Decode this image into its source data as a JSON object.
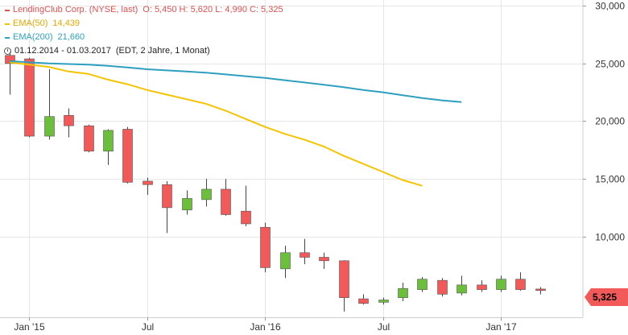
{
  "header": {
    "title_line": "LendingClub Corp. (NYSE, last)",
    "ohlc_line": "O: 5,450  H: 5,620  L: 4,990  C: 5,325",
    "ema50_label": "EMA(50)",
    "ema50_value": "14,439",
    "ema200_label": "EMA(200)",
    "ema200_value": "21,660",
    "range_label": "01.12.2014 - 01.03.2017",
    "range_note": "(EDT, 2 Jahre, 1 Monat)"
  },
  "colors": {
    "up": "#6cbf3a",
    "down": "#f25a5a",
    "ema50": "#f5c400",
    "ema200": "#2e9fbf",
    "grid": "#e6e6e6",
    "text_red": "#e05050"
  },
  "last_price_label": "5,325",
  "chart_data": {
    "type": "candlestick",
    "ylim": [
      3000,
      30500
    ],
    "y_ticks": [
      10000,
      15000,
      20000,
      25000,
      30000
    ],
    "y_tick_labels": [
      "10,000",
      "15,000",
      "20,000",
      "25,000",
      "30,000"
    ],
    "x_ticks": [
      {
        "label": "Jan '15",
        "index": 1
      },
      {
        "label": "Jul",
        "index": 7
      },
      {
        "label": "Jan '16",
        "index": 13
      },
      {
        "label": "Jul",
        "index": 19
      },
      {
        "label": "Jan '17",
        "index": 25
      }
    ],
    "candles": [
      {
        "o": 25700,
        "h": 26000,
        "l": 22300,
        "c": 25000
      },
      {
        "o": 25400,
        "h": 25500,
        "l": 18600,
        "c": 18700
      },
      {
        "o": 18700,
        "h": 24500,
        "l": 18400,
        "c": 20400
      },
      {
        "o": 20500,
        "h": 21100,
        "l": 18600,
        "c": 19600
      },
      {
        "o": 19600,
        "h": 19700,
        "l": 17300,
        "c": 17400
      },
      {
        "o": 17400,
        "h": 19300,
        "l": 16200,
        "c": 19200
      },
      {
        "o": 19300,
        "h": 19500,
        "l": 14600,
        "c": 14700
      },
      {
        "o": 14800,
        "h": 15100,
        "l": 13600,
        "c": 14500
      },
      {
        "o": 14500,
        "h": 14800,
        "l": 10300,
        "c": 12500
      },
      {
        "o": 12300,
        "h": 14000,
        "l": 11900,
        "c": 13300
      },
      {
        "o": 13200,
        "h": 15000,
        "l": 12600,
        "c": 14100
      },
      {
        "o": 14100,
        "h": 15000,
        "l": 11800,
        "c": 11900
      },
      {
        "o": 12200,
        "h": 14400,
        "l": 10900,
        "c": 11100
      },
      {
        "o": 10800,
        "h": 11200,
        "l": 6900,
        "c": 7300
      },
      {
        "o": 7200,
        "h": 9200,
        "l": 6400,
        "c": 8600
      },
      {
        "o": 8600,
        "h": 9800,
        "l": 7600,
        "c": 8200
      },
      {
        "o": 8200,
        "h": 8600,
        "l": 7200,
        "c": 7900
      },
      {
        "o": 7900,
        "h": 7950,
        "l": 3500,
        "c": 4700
      },
      {
        "o": 4600,
        "h": 5000,
        "l": 4100,
        "c": 4200
      },
      {
        "o": 4300,
        "h": 4700,
        "l": 4100,
        "c": 4500
      },
      {
        "o": 4700,
        "h": 6000,
        "l": 4400,
        "c": 5500
      },
      {
        "o": 5400,
        "h": 6500,
        "l": 5200,
        "c": 6300
      },
      {
        "o": 6200,
        "h": 6400,
        "l": 4800,
        "c": 5000
      },
      {
        "o": 5100,
        "h": 6600,
        "l": 4900,
        "c": 5800
      },
      {
        "o": 5800,
        "h": 6200,
        "l": 5200,
        "c": 5400
      },
      {
        "o": 5400,
        "h": 6600,
        "l": 5200,
        "c": 6300
      },
      {
        "o": 6300,
        "h": 6900,
        "l": 5300,
        "c": 5400
      },
      {
        "o": 5450,
        "h": 5620,
        "l": 4990,
        "c": 5325
      }
    ],
    "series": [
      {
        "name": "EMA(50)",
        "values": [
          25100,
          24900,
          24700,
          24300,
          24100,
          23600,
          23200,
          22700,
          22300,
          21900,
          21500,
          20900,
          20200,
          19500,
          18900,
          18400,
          17800,
          17000,
          16300,
          15600,
          14900,
          14400
        ]
      },
      {
        "name": "EMA(200)",
        "values": [
          25200,
          25100,
          25000,
          24950,
          24900,
          24800,
          24650,
          24500,
          24400,
          24300,
          24200,
          24050,
          23900,
          23750,
          23550,
          23350,
          23150,
          22950,
          22700,
          22500,
          22250,
          22000,
          21800,
          21660
        ]
      }
    ]
  }
}
